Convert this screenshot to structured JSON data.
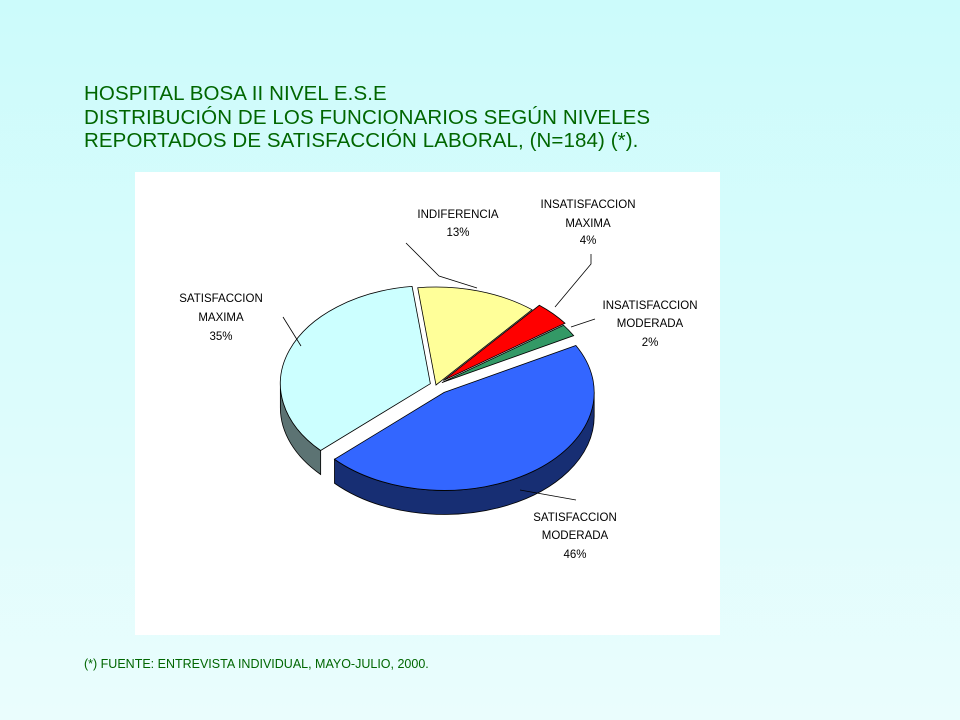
{
  "title": {
    "line1": "HOSPITAL BOSA II NIVEL E.S.E",
    "line2": "DISTRIBUCIÓN DE LOS FUNCIONARIOS SEGÚN NIVELES",
    "line3": "REPORTADOS DE SATISFACCIÓN LABORAL,  (N=184) (*)."
  },
  "chart_data": {
    "type": "pie",
    "grid": false,
    "legend": "none",
    "slices": [
      {
        "label_lines": [
          "INDIFERENCIA"
        ],
        "pct": "13%",
        "value": 13,
        "color": "#ffff99"
      },
      {
        "label_lines": [
          "INSATISFACCION",
          "MAXIMA"
        ],
        "pct": "4%",
        "value": 4,
        "color": "#ff0000"
      },
      {
        "label_lines": [
          "INSATISFACCION",
          "MODERADA"
        ],
        "pct": "2%",
        "value": 2,
        "color": "#339966"
      },
      {
        "label_lines": [
          "SATISFACCION",
          "MODERADA"
        ],
        "pct": "46%",
        "value": 46,
        "color": "#3366ff"
      },
      {
        "label_lines": [
          "SATISFACCION",
          "MAXIMA"
        ],
        "pct": "35%",
        "value": 35,
        "color": "#ccffff"
      }
    ]
  },
  "footnote": "(*) FUENTE: ENTREVISTA INDIVIDUAL, MAYO-JULIO, 2000."
}
